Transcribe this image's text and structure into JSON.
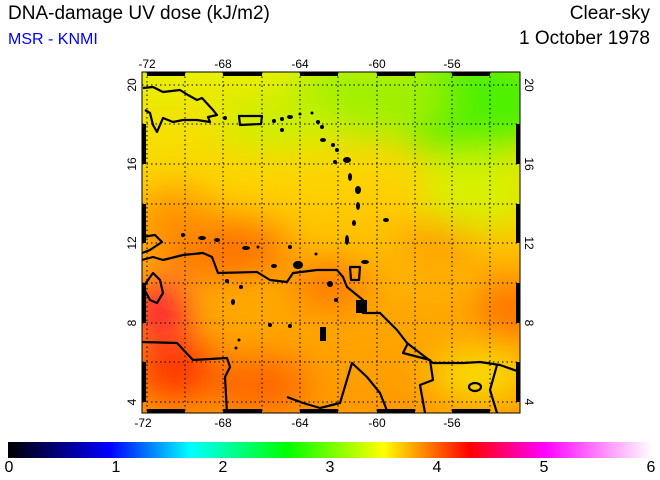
{
  "header": {
    "title": "DNA-damage UV dose (kJ/m2)",
    "source": "MSR - KNMI",
    "mode": "Clear-sky",
    "date": "1 October 1978"
  },
  "map": {
    "lon_ticks": [
      "-72",
      "-68",
      "-64",
      "-60",
      "-56"
    ],
    "lat_ticks": [
      "20",
      "16",
      "12",
      "8",
      "4"
    ],
    "lon_range": [
      -72.2,
      -52.4
    ],
    "lat_range": [
      3.4,
      20.7
    ]
  },
  "colorbar": {
    "labels": [
      "0",
      "1",
      "2",
      "3",
      "4",
      "5",
      "6"
    ],
    "range": [
      0,
      6
    ],
    "stops": [
      {
        "v": 0,
        "c": "#000000"
      },
      {
        "v": 0.95,
        "c": "#0000ff"
      },
      {
        "v": 1.7,
        "c": "#00ffff"
      },
      {
        "v": 2.6,
        "c": "#00ff00"
      },
      {
        "v": 3.5,
        "c": "#ffff00"
      },
      {
        "v": 4.3,
        "c": "#ff0000"
      },
      {
        "v": 5.0,
        "c": "#ff00ff"
      },
      {
        "v": 6,
        "c": "#ffffff"
      }
    ]
  }
}
